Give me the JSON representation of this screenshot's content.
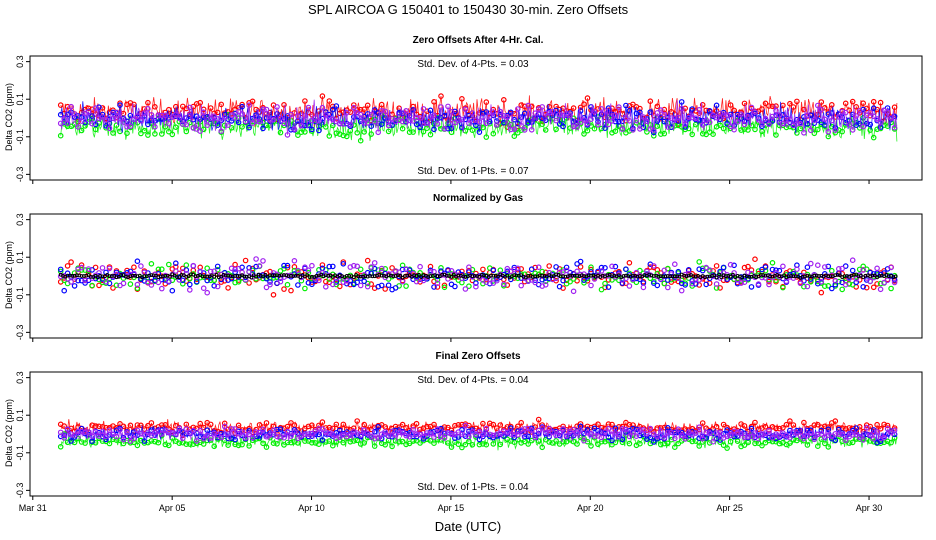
{
  "chart_data": {
    "title": "SPL   AIRCOA G   150401 to 150430   30-min. Zero Offsets",
    "xlabel": "Date (UTC)",
    "x_ticks": [
      {
        "day": 0,
        "label": "Mar 31"
      },
      {
        "day": 5,
        "label": "Apr 05"
      },
      {
        "day": 10,
        "label": "Apr 10"
      },
      {
        "day": 15,
        "label": "Apr 15"
      },
      {
        "day": 20,
        "label": "Apr 20"
      },
      {
        "day": 25,
        "label": "Apr 25"
      },
      {
        "day": 30,
        "label": "Apr 30"
      }
    ],
    "xlim_days": [
      -0.1,
      31.9
    ],
    "series_colors": {
      "red": "#ff0000",
      "green": "#00ee00",
      "blue": "#0000ff",
      "purple": "#a020f0",
      "black": "#000000"
    },
    "panels": [
      {
        "type": "scatter",
        "title": "Zero Offsets After 4-Hr. Cal.",
        "ylabel": "Delta CO2 (ppm)",
        "ylim": [
          -0.33,
          0.33
        ],
        "y_ticks": [
          {
            "value": 0.3,
            "label": "0.3"
          },
          {
            "value": 0.1,
            "label": "0.1"
          },
          {
            "value": -0.1,
            "label": "-0.1"
          },
          {
            "value": -0.3,
            "label": "-0.3"
          }
        ],
        "annotation_top": "Std. Dev. of 4-Pts. = 0.03",
        "annotation_bottom": "Std. Dev. of 1-Pts. = 0.07",
        "series": [
          {
            "name": "red",
            "offset": 0.035,
            "spread": 0.06,
            "connected": true
          },
          {
            "name": "green",
            "offset": -0.045,
            "spread": 0.055,
            "connected": true
          },
          {
            "name": "blue",
            "offset": 0.0,
            "spread": 0.055,
            "connected": true
          },
          {
            "name": "purple",
            "offset": 0.0,
            "spread": 0.065,
            "connected": true
          }
        ]
      },
      {
        "type": "scatter",
        "title": "Normalized by Gas",
        "ylabel": "Delta CO2 (ppm)",
        "ylim": [
          -0.33,
          0.33
        ],
        "y_ticks": [
          {
            "value": 0.3,
            "label": "0.3"
          },
          {
            "value": 0.1,
            "label": "0.1"
          },
          {
            "value": -0.1,
            "label": "-0.1"
          },
          {
            "value": -0.3,
            "label": "-0.3"
          }
        ],
        "series": [
          {
            "name": "red",
            "offset": 0.0,
            "spread": 0.06,
            "connected": false
          },
          {
            "name": "green",
            "offset": 0.0,
            "spread": 0.06,
            "connected": false
          },
          {
            "name": "blue",
            "offset": 0.0,
            "spread": 0.06,
            "connected": false
          },
          {
            "name": "purple",
            "offset": 0.0,
            "spread": 0.06,
            "connected": false
          },
          {
            "name": "black",
            "offset": 0.0,
            "spread": 0.0,
            "connected": false
          }
        ]
      },
      {
        "type": "scatter",
        "title": "Final Zero Offsets",
        "ylabel": "Delta CO2 (ppm)",
        "ylim": [
          -0.33,
          0.33
        ],
        "y_ticks": [
          {
            "value": 0.3,
            "label": "0.3"
          },
          {
            "value": 0.1,
            "label": "0.1"
          },
          {
            "value": -0.1,
            "label": "-0.1"
          },
          {
            "value": -0.3,
            "label": "-0.3"
          }
        ],
        "annotation_top": "Std. Dev. of 4-Pts. = 0.04",
        "annotation_bottom": "Std. Dev. of 1-Pts. = 0.04",
        "series": [
          {
            "name": "red",
            "offset": 0.035,
            "spread": 0.028,
            "connected": true
          },
          {
            "name": "green",
            "offset": -0.04,
            "spread": 0.028,
            "connected": true
          },
          {
            "name": "blue",
            "offset": 0.0,
            "spread": 0.03,
            "connected": true
          },
          {
            "name": "purple",
            "offset": 0.0,
            "spread": 0.03,
            "connected": true
          }
        ]
      }
    ],
    "time_range_days": [
      1.0,
      31.0
    ],
    "samples_per_series": 720
  }
}
